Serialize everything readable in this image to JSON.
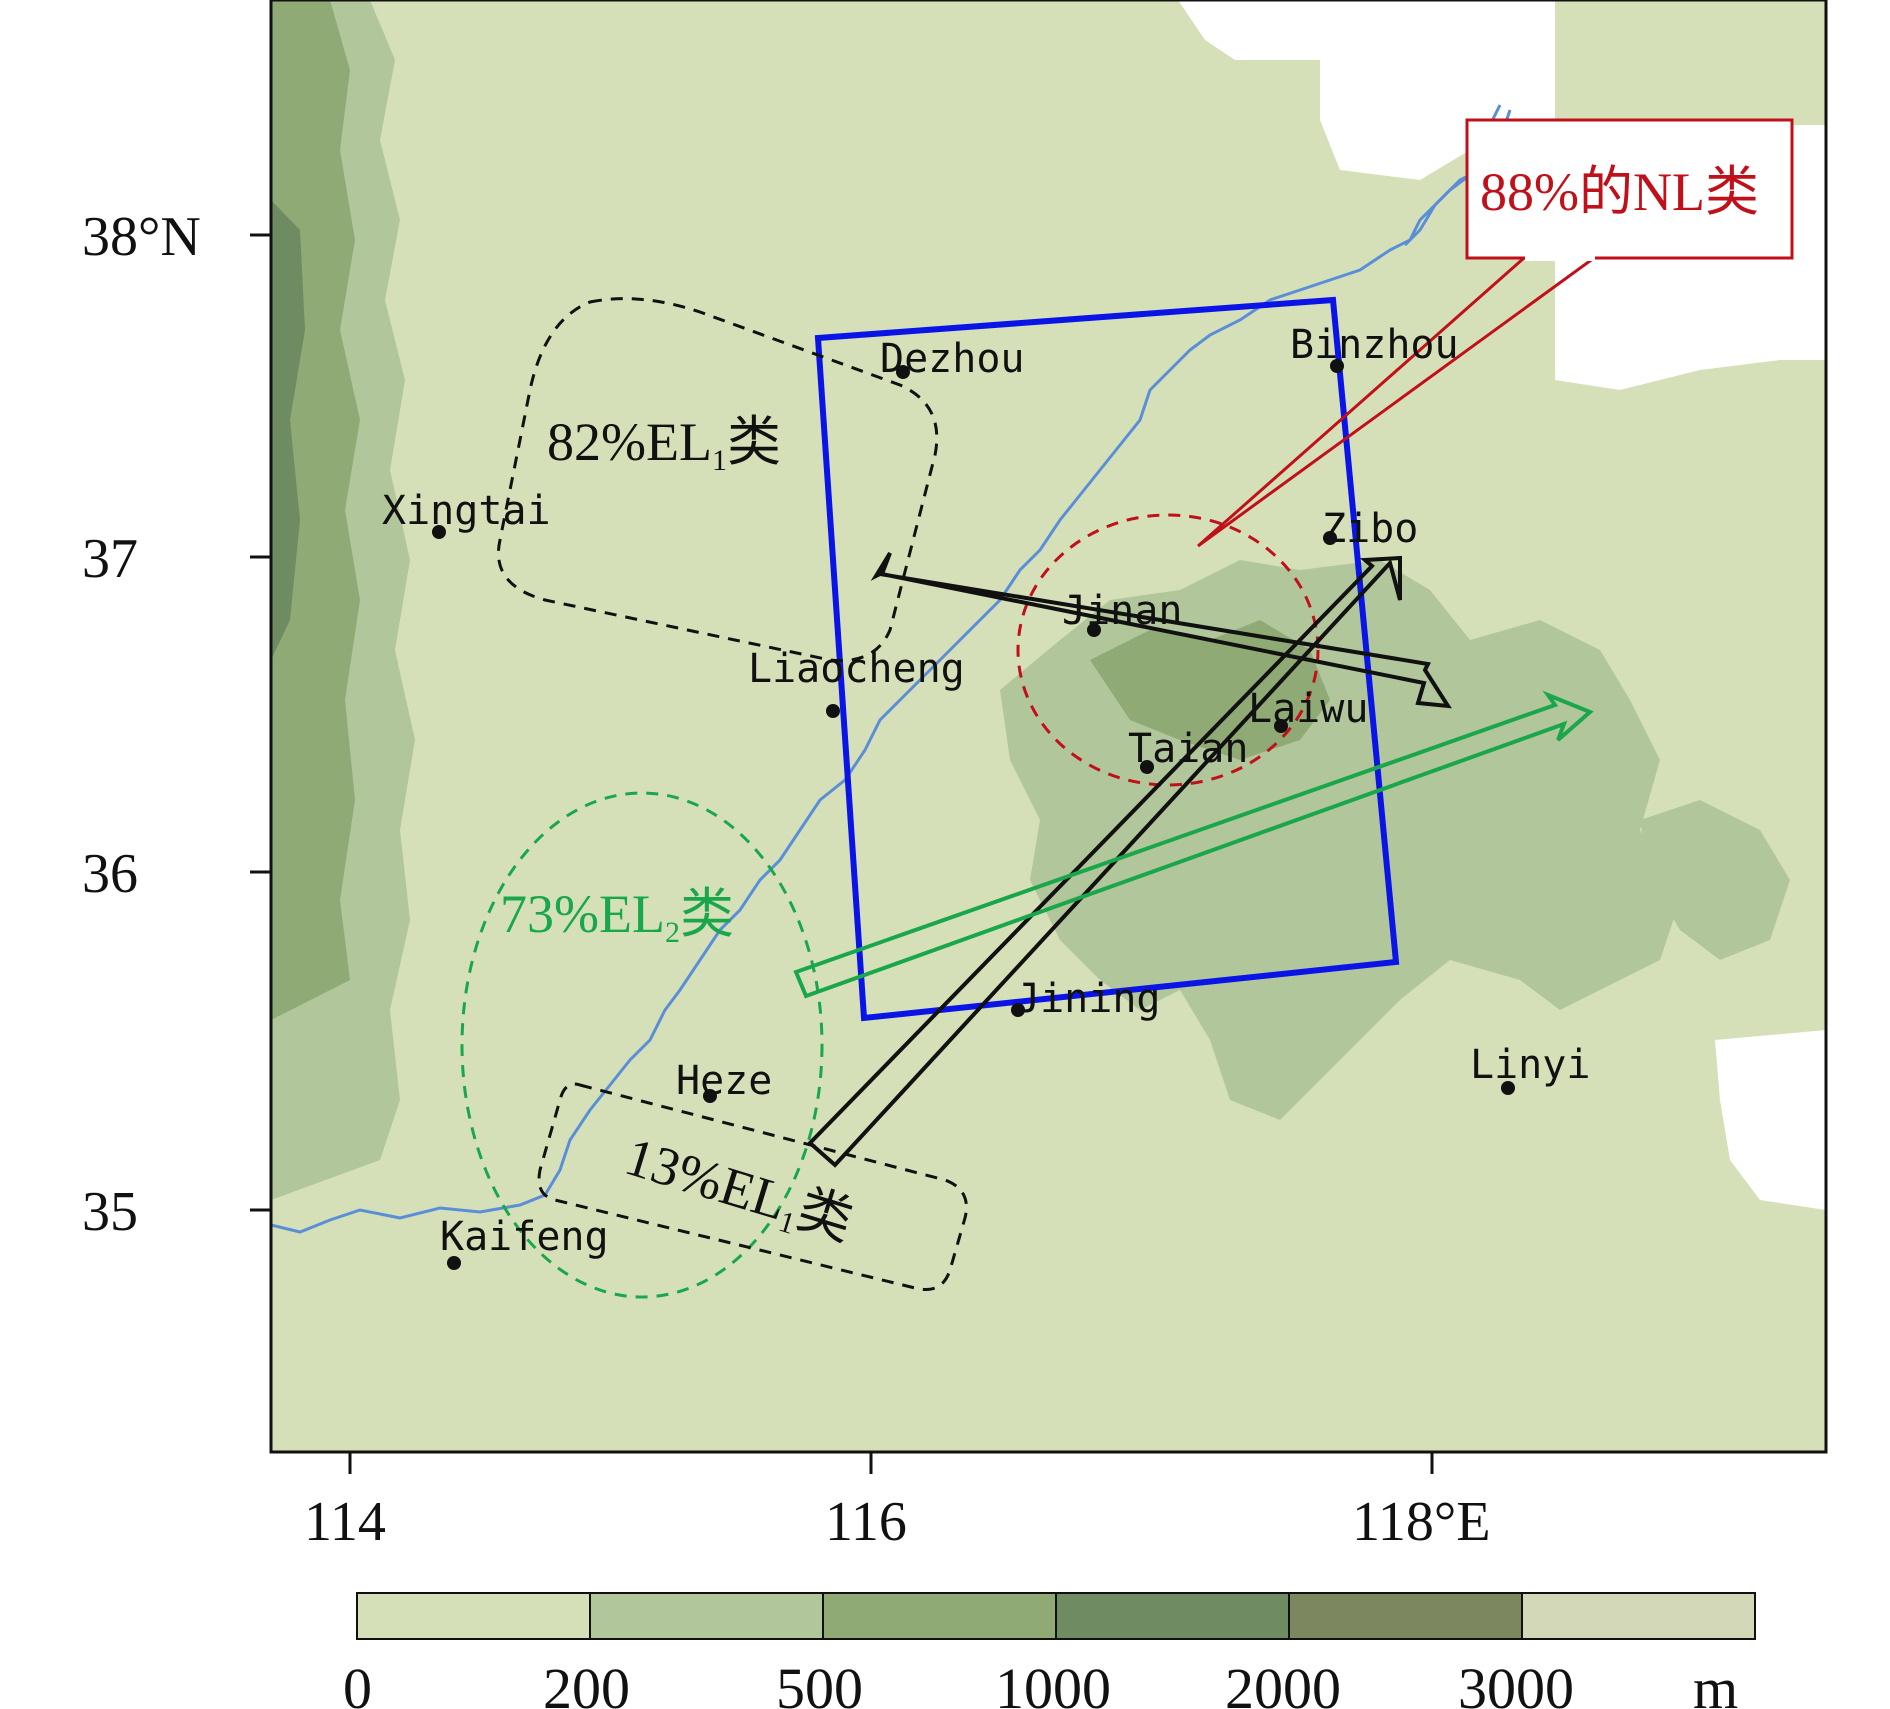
{
  "map": {
    "axes": {
      "x_ticks": [
        "114",
        "116",
        "118°E"
      ],
      "y_ticks": [
        "38°N",
        "37",
        "36",
        "35"
      ]
    },
    "cities": [
      {
        "name": "Dezhou"
      },
      {
        "name": "Binzhou"
      },
      {
        "name": "Xingtai"
      },
      {
        "name": "Zibo"
      },
      {
        "name": "Jinan"
      },
      {
        "name": "Liaocheng"
      },
      {
        "name": "Laiwu"
      },
      {
        "name": "Taian"
      },
      {
        "name": "Jining"
      },
      {
        "name": "Heze"
      },
      {
        "name": "Linyi"
      },
      {
        "name": "Kaifeng"
      }
    ],
    "annotations": {
      "nl": "88%的NL类",
      "el1_north_prefix": "82%EL",
      "el1_north_sub": "1",
      "el1_north_suffix": "类",
      "el2_prefix": "73%EL",
      "el2_sub": "2",
      "el2_suffix": "类",
      "el1_south_prefix": "13%EL",
      "el1_south_sub": "1",
      "el1_south_suffix": "类"
    },
    "colors": {
      "terrain_base": "#d5e0b9",
      "terrain_200": "#b1c69b",
      "terrain_500": "#8faa74",
      "terrain_1000": "#6f8b62",
      "terrain_2000": "#7c8760",
      "terrain_3000": "#d3d8b9",
      "domain_box": "#0a14e6",
      "river": "#5a8fd8",
      "nl_color": "#c0111b",
      "el2_color": "#1aa74c",
      "el1_color": "#111111"
    }
  },
  "legend": {
    "labels": [
      "0",
      "200",
      "500",
      "1000",
      "2000",
      "3000"
    ],
    "unit": "m"
  }
}
